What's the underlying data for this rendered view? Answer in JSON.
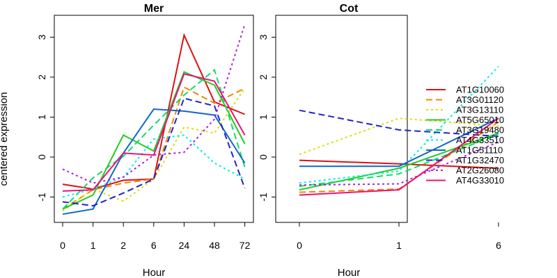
{
  "chart_data": [
    {
      "type": "line",
      "title": "Mer",
      "xlabel": "Hour",
      "ylabel": "centered expression",
      "categories": [
        "0",
        "1",
        "2",
        "6",
        "24",
        "48",
        "72"
      ],
      "yticks": [
        "-1",
        "0",
        "1",
        "2",
        "3"
      ],
      "ylim": [
        -1.65,
        3.5
      ],
      "series": [
        {
          "name": "AT1G10060",
          "values": [
            -0.68,
            -0.8,
            -0.58,
            -0.55,
            3.05,
            1.38,
            1.07
          ]
        },
        {
          "name": "AT3G01120",
          "values": [
            -1.3,
            -0.82,
            -0.65,
            -0.55,
            1.75,
            1.35,
            1.72
          ]
        },
        {
          "name": "AT3G13110",
          "values": [
            -1.35,
            -0.8,
            -1.1,
            -0.55,
            0.75,
            0.6,
            1.72
          ]
        },
        {
          "name": "AT5G65010",
          "values": [
            -1.3,
            -0.95,
            0.55,
            0.15,
            2.13,
            1.8,
            0.33
          ]
        },
        {
          "name": "AT3G19480",
          "values": [
            -1.3,
            -0.52,
            0.02,
            0.8,
            1.55,
            2.18,
            -0.25
          ]
        },
        {
          "name": "AT4G33510",
          "values": [
            -1.0,
            -0.8,
            -0.5,
            0.45,
            0.55,
            -0.15,
            -0.55
          ]
        },
        {
          "name": "AT1G51110",
          "values": [
            -1.43,
            -1.3,
            0.1,
            1.2,
            1.15,
            1.05,
            -0.15
          ]
        },
        {
          "name": "AT1G32470",
          "values": [
            -1.12,
            -1.22,
            -0.9,
            -0.55,
            1.47,
            1.28,
            -0.78
          ]
        },
        {
          "name": "AT2G26080",
          "values": [
            -0.3,
            -0.65,
            -0.5,
            0.05,
            0.12,
            0.95,
            3.32
          ]
        },
        {
          "name": "AT4G33010",
          "values": [
            -0.85,
            -0.82,
            0.1,
            0.05,
            2.08,
            1.9,
            0.55
          ]
        }
      ]
    },
    {
      "type": "line",
      "title": "Cot",
      "xlabel": "Hour",
      "categories": [
        "0",
        "1",
        "6"
      ],
      "yticks": [
        "-1",
        "0",
        "1",
        "2",
        "3"
      ],
      "ylim": [
        -1.65,
        3.5
      ],
      "series": [
        {
          "name": "AT1G10060",
          "values": [
            -0.08,
            -0.17,
            -0.28
          ]
        },
        {
          "name": "AT3G01120",
          "values": [
            -0.88,
            -0.8,
            0.88
          ]
        },
        {
          "name": "AT3G13110",
          "values": [
            0.07,
            0.97,
            0.78
          ]
        },
        {
          "name": "AT5G65010",
          "values": [
            -0.82,
            -0.28,
            0.6
          ]
        },
        {
          "name": "AT3G19480",
          "values": [
            -0.73,
            -0.42,
            0.58
          ]
        },
        {
          "name": "AT4G33510",
          "values": [
            -0.65,
            -0.35,
            2.27
          ]
        },
        {
          "name": "AT1G51110",
          "values": [
            -0.23,
            -0.23,
            0.97
          ]
        },
        {
          "name": "AT1G32470",
          "values": [
            1.17,
            0.68,
            0.52
          ]
        },
        {
          "name": "AT2G26080",
          "values": [
            -0.7,
            -0.67,
            0.38
          ]
        },
        {
          "name": "AT4G33010",
          "values": [
            -0.95,
            -0.82,
            0.97
          ]
        }
      ]
    }
  ],
  "legend": {
    "placement": "right",
    "entries": [
      {
        "name": "AT1G10060",
        "color": "#dd1111",
        "dash": "solid"
      },
      {
        "name": "AT3G01120",
        "color": "#ee8800",
        "dash": "dashed"
      },
      {
        "name": "AT3G13110",
        "color": "#dddd00",
        "dash": "dotted"
      },
      {
        "name": "AT5G65010",
        "color": "#22cc22",
        "dash": "solid"
      },
      {
        "name": "AT3G19480",
        "color": "#11dd66",
        "dash": "dashed"
      },
      {
        "name": "AT4G33510",
        "color": "#00eeee",
        "dash": "dotted"
      },
      {
        "name": "AT1G51110",
        "color": "#1166cc",
        "dash": "solid"
      },
      {
        "name": "AT1G32470",
        "color": "#2222cc",
        "dash": "dashed"
      },
      {
        "name": "AT2G26080",
        "color": "#aa22dd",
        "dash": "dotted"
      },
      {
        "name": "AT4G33010",
        "color": "#ee1177",
        "dash": "solid"
      }
    ]
  }
}
